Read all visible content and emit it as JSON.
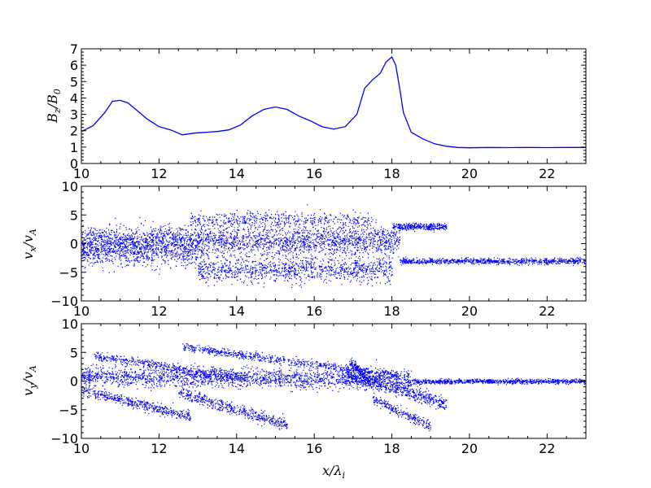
{
  "chart_data": [
    {
      "type": "line",
      "panel": "top",
      "ylabel": "B_z/B_0",
      "ylabel_parts": {
        "main": "B",
        "sub1": "z",
        "mid": "/B",
        "sub2": "0"
      },
      "xlim": [
        10,
        23
      ],
      "ylim": [
        0,
        7
      ],
      "x_ticks": [
        "10",
        "12",
        "14",
        "16",
        "18",
        "20",
        "22"
      ],
      "y_ticks": [
        "0",
        "1",
        "2",
        "3",
        "4",
        "5",
        "6",
        "7"
      ],
      "color": "#0000ff",
      "series": [
        {
          "x": [
            10.0,
            10.3,
            10.6,
            10.8,
            11.0,
            11.2,
            11.4,
            11.7,
            12.0,
            12.3,
            12.6,
            12.9,
            13.2,
            13.5,
            13.8,
            14.1,
            14.4,
            14.7,
            15.0,
            15.3,
            15.6,
            15.9,
            16.2,
            16.5,
            16.8,
            17.1,
            17.3,
            17.5,
            17.7,
            17.85,
            18.0,
            18.1,
            18.2,
            18.3,
            18.5,
            18.8,
            19.1,
            19.4,
            19.7,
            20.0,
            20.5,
            21.0,
            21.5,
            22.0,
            22.5,
            23.0
          ],
          "y": [
            1.95,
            2.3,
            3.1,
            3.8,
            3.85,
            3.7,
            3.3,
            2.7,
            2.25,
            2.05,
            1.75,
            1.85,
            1.9,
            1.95,
            2.05,
            2.35,
            2.9,
            3.3,
            3.45,
            3.3,
            2.9,
            2.6,
            2.25,
            2.1,
            2.25,
            3.0,
            4.6,
            5.1,
            5.5,
            6.2,
            6.5,
            6.0,
            4.6,
            3.1,
            1.9,
            1.5,
            1.2,
            1.05,
            0.98,
            0.96,
            0.98,
            0.97,
            0.98,
            0.97,
            0.98,
            0.98
          ]
        }
      ]
    },
    {
      "type": "scatter",
      "panel": "middle",
      "ylabel": "v_x/v_A",
      "ylabel_parts": {
        "main": "v",
        "sub1": "x",
        "mid": "/v",
        "sub2": "A"
      },
      "xlim": [
        10,
        23
      ],
      "ylim": [
        -10,
        10
      ],
      "x_ticks": [
        "10",
        "12",
        "14",
        "16",
        "18",
        "20",
        "22"
      ],
      "y_ticks": [
        "-10",
        "-5",
        "0",
        "5",
        "10"
      ],
      "color": "#0000ff",
      "clusters": [
        {
          "x": [
            10.0,
            18.2
          ],
          "y_center": 0.5,
          "y_spread": 2.6,
          "count": 2600
        },
        {
          "x": [
            10.0,
            13.0
          ],
          "y_center": -1.5,
          "y_spread": 2.5,
          "count": 700
        },
        {
          "x": [
            12.8,
            17.5
          ],
          "y_center": 4.2,
          "y_spread": 1.4,
          "count": 500
        },
        {
          "x": [
            13.0,
            18.0
          ],
          "y_center": -4.5,
          "y_spread": 2.2,
          "count": 1100
        },
        {
          "x": [
            18.0,
            19.4
          ],
          "y_center": 3.0,
          "y_spread": 0.6,
          "count": 350
        },
        {
          "x": [
            18.2,
            23.0
          ],
          "y_center": -3.0,
          "y_spread": 0.5,
          "count": 900
        }
      ]
    },
    {
      "type": "scatter",
      "panel": "bottom",
      "ylabel": "v_y/v_A",
      "ylabel_parts": {
        "main": "v",
        "sub1": "y",
        "mid": "/v",
        "sub2": "A"
      },
      "xlabel": "x/λ_i",
      "xlabel_parts": {
        "main": "x/λ",
        "sub": "i"
      },
      "xlim": [
        10,
        23
      ],
      "ylim": [
        -10,
        10
      ],
      "x_ticks": [
        "10",
        "12",
        "14",
        "16",
        "18",
        "20",
        "22"
      ],
      "y_ticks": [
        "-10",
        "-5",
        "0",
        "5",
        "10"
      ],
      "color": "#0000ff",
      "bands": [
        {
          "x": [
            10.0,
            18.5
          ],
          "y_start": 0.8,
          "y_end": 0.3,
          "spread": 1.6,
          "count": 2000
        },
        {
          "x": [
            10.3,
            14.2
          ],
          "y_start": 4.5,
          "y_end": 0.5,
          "spread": 0.8,
          "count": 500
        },
        {
          "x": [
            12.6,
            18.2
          ],
          "y_start": 6.0,
          "y_end": 1.0,
          "spread": 0.7,
          "count": 700
        },
        {
          "x": [
            10.0,
            12.8
          ],
          "y_start": -1.5,
          "y_end": -6.2,
          "spread": 0.9,
          "count": 500
        },
        {
          "x": [
            12.5,
            15.3
          ],
          "y_start": -2.0,
          "y_end": -7.5,
          "spread": 1.0,
          "count": 500
        },
        {
          "x": [
            16.8,
            19.4
          ],
          "y_start": 1.5,
          "y_end": -4.0,
          "spread": 1.2,
          "count": 600
        },
        {
          "x": [
            17.5,
            19.0
          ],
          "y_start": -3.0,
          "y_end": -8.0,
          "spread": 0.8,
          "count": 250
        },
        {
          "x": [
            18.5,
            23.0
          ],
          "y_start": 0.0,
          "y_end": 0.0,
          "spread": 0.4,
          "count": 900
        },
        {
          "x": [
            16.9,
            17.3
          ],
          "y_start": 3.5,
          "y_end": 1.0,
          "spread": 0.8,
          "count": 120
        }
      ]
    }
  ]
}
